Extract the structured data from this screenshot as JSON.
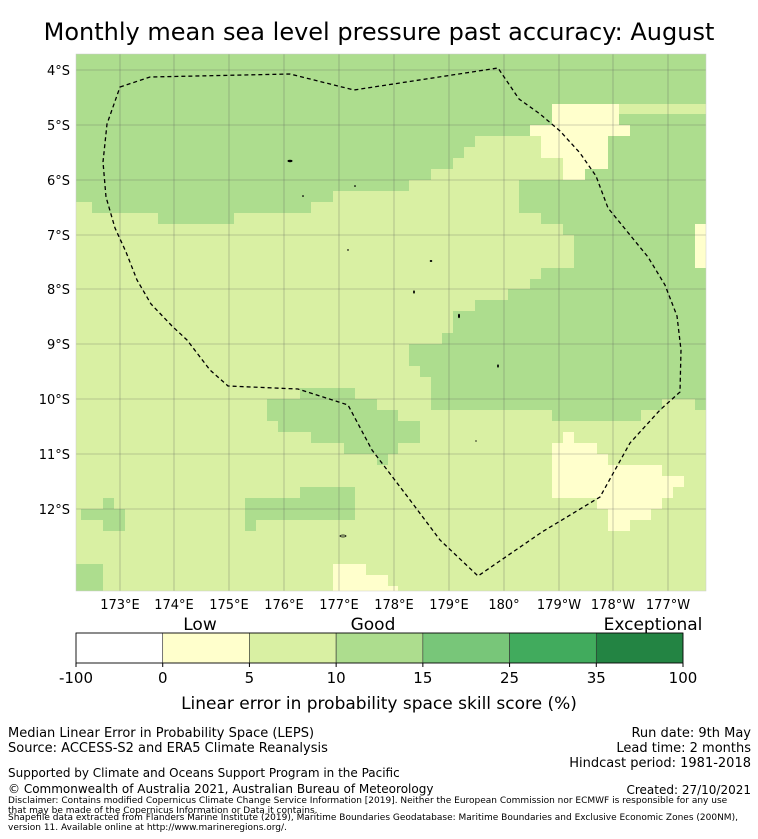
{
  "title": "Monthly mean sea level pressure past accuracy: August",
  "map": {
    "lat_labels": [
      "4°S",
      "5°S",
      "6°S",
      "7°S",
      "8°S",
      "9°S",
      "10°S",
      "11°S",
      "12°S"
    ],
    "lon_labels": [
      "173°E",
      "174°E",
      "175°E",
      "176°E",
      "177°E",
      "178°E",
      "179°E",
      "180°",
      "179°W",
      "178°W",
      "177°W"
    ],
    "lon_range": [
      172.2,
      183.7
    ],
    "lat_range": [
      -3.7,
      -13.5
    ],
    "colors": {
      "band_0_5": "#ffffcc",
      "band_5_10": "#d9f0a3",
      "band_10_15": "#addd8e",
      "band_15_25": "#78c679",
      "band_25_35": "#41ab5d",
      "band_35_100": "#238443",
      "eez_outline": "#000000",
      "grid": "#555555"
    }
  },
  "colorbar": {
    "category_labels": [
      "Low",
      "Good",
      "Exceptional"
    ],
    "ticks": [
      "-100",
      "0",
      "5",
      "10",
      "15",
      "25",
      "35",
      "100"
    ],
    "bands": [
      {
        "from": -100,
        "to": 0,
        "color": "#ffffff"
      },
      {
        "from": 0,
        "to": 5,
        "color": "#ffffcc"
      },
      {
        "from": 5,
        "to": 10,
        "color": "#d9f0a3"
      },
      {
        "from": 10,
        "to": 15,
        "color": "#addd8e"
      },
      {
        "from": 15,
        "to": 25,
        "color": "#78c679"
      },
      {
        "from": 25,
        "to": 35,
        "color": "#41ab5d"
      },
      {
        "from": 35,
        "to": 100,
        "color": "#238443"
      }
    ],
    "label": "Linear error in probability space skill score (%)"
  },
  "footer": {
    "left_line1": "Median Linear Error in Probability Space (LEPS)",
    "left_line2": "Source: ACCESS-S2 and ERA5 Climate Reanalysis",
    "right_line1": "Run date: 9th May",
    "right_line2": "Lead time: 2 months",
    "right_line3": "Hindcast period: 1981-2018",
    "supported": "Supported by Climate and Oceans Support Program in the Pacific",
    "copyright": "© Commonwealth of Australia 2021, Australian Bureau of Meteorology",
    "created": "Created: 27/10/2021",
    "disclaimer1": "Disclaimer: Contains modified Copernicus Climate Change Service Information [2019]. Neither the European Commission nor ECMWF is responsible for any use",
    "disclaimer2": "that may be made of the Copernicus Information or Data it contains.",
    "disclaimer3": "Shapefile data extracted from Flanders Marine Institute (2019), Maritime Boundaries Geodatabase: Maritime Boundaries and Exclusive Economic Zones (200NM),",
    "disclaimer4": "version 11. Available online at http://www.marineregions.org/."
  }
}
